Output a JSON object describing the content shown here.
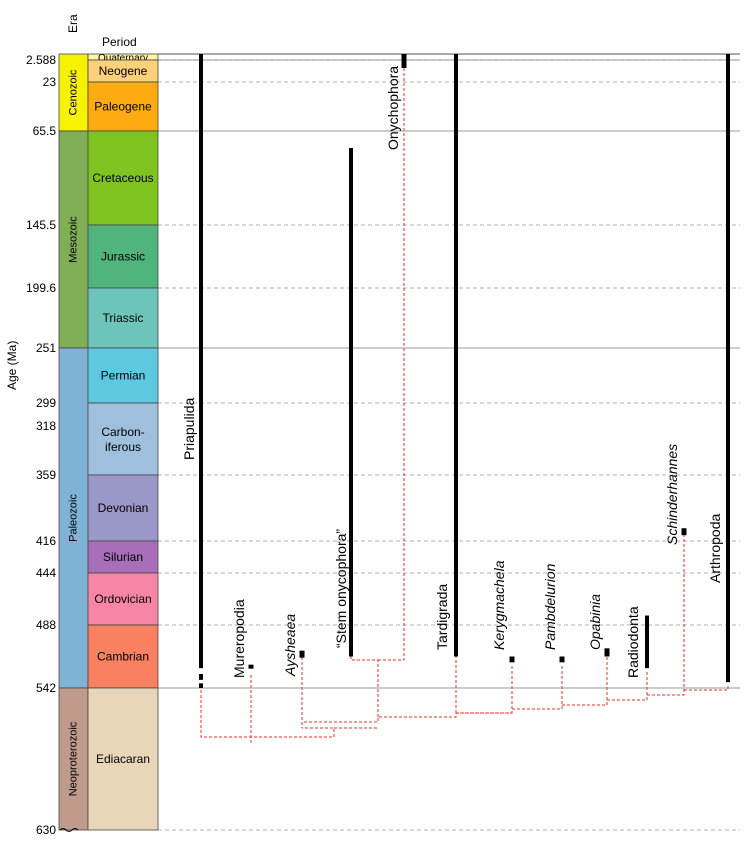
{
  "headers": {
    "era": "Era",
    "period": "Period",
    "age_axis": "Age (Ma)"
  },
  "age_ticks": [
    {
      "label": "2.588",
      "value": 2.588,
      "line": "solid"
    },
    {
      "label": "23",
      "value": 23,
      "line": "dashed"
    },
    {
      "label": "65.5",
      "value": 65.5,
      "line": "solid"
    },
    {
      "label": "145.5",
      "value": 145.5,
      "line": "dashed"
    },
    {
      "label": "199.6",
      "value": 199.6,
      "line": "dashed"
    },
    {
      "label": "251",
      "value": 251,
      "line": "solid"
    },
    {
      "label": "299",
      "value": 299,
      "line": "dashed"
    },
    {
      "label": "318",
      "value": 318,
      "line": "none"
    },
    {
      "label": "359",
      "value": 359,
      "line": "dashed"
    },
    {
      "label": "416",
      "value": 416,
      "line": "dashed"
    },
    {
      "label": "444",
      "value": 444,
      "line": "dashed"
    },
    {
      "label": "488",
      "value": 488,
      "line": "dashed"
    },
    {
      "label": "542",
      "value": 542,
      "line": "solid"
    },
    {
      "label": "630",
      "value": 630,
      "line": "dashed"
    }
  ],
  "eras": [
    {
      "name": "Cenozoic",
      "start": 0,
      "end": 65.5,
      "color": "#f7f200"
    },
    {
      "name": "Mesozoic",
      "start": 65.5,
      "end": 251,
      "color": "#7fae56"
    },
    {
      "name": "Paleozoic",
      "start": 251,
      "end": 542,
      "color": "#7fb3d6"
    },
    {
      "name": "Neoproterozoic",
      "start": 542,
      "end": 630,
      "color": "#c09b8c"
    }
  ],
  "periods": [
    {
      "name": "Quaternary",
      "start": 0,
      "end": 2.588,
      "color": "#fef5a5"
    },
    {
      "name": "Neogene",
      "start": 2.588,
      "end": 23,
      "color": "#fcd17a"
    },
    {
      "name": "Paleogene",
      "start": 23,
      "end": 65.5,
      "color": "#fcac10"
    },
    {
      "name": "Cretaceous",
      "start": 65.5,
      "end": 145.5,
      "color": "#7fc321"
    },
    {
      "name": "Jurassic",
      "start": 145.5,
      "end": 199.6,
      "color": "#4fb57c"
    },
    {
      "name": "Triassic",
      "start": 199.6,
      "end": 251,
      "color": "#6cc5b8"
    },
    {
      "name": "Permian",
      "start": 251,
      "end": 299,
      "color": "#5ec8e0"
    },
    {
      "name": "Carbon-iferous",
      "line1": "Carbon-",
      "line2": "iferous",
      "start": 299,
      "end": 359,
      "color": "#9fc0dd"
    },
    {
      "name": "Devonian",
      "start": 359,
      "end": 416,
      "color": "#9a98c8"
    },
    {
      "name": "Silurian",
      "start": 416,
      "end": 444,
      "color": "#a86fb8"
    },
    {
      "name": "Ordovician",
      "start": 444,
      "end": 488,
      "color": "#f785a5"
    },
    {
      "name": "Cambrian",
      "start": 488,
      "end": 542,
      "color": "#f98060"
    },
    {
      "name": "Ediacaran",
      "start": 542,
      "end": 630,
      "color": "#e9d6b8"
    }
  ],
  "taxa": [
    {
      "name": "Priapulida",
      "italic": false,
      "range_top": 0,
      "range_bottom": 542,
      "gaps": [
        [
          525,
          530
        ],
        [
          535,
          538
        ]
      ]
    },
    {
      "name": "Mureropodia",
      "italic": false,
      "range_top": 522,
      "range_bottom": 525,
      "gaps": []
    },
    {
      "name": "Aysheaea",
      "italic": true,
      "range_top": 510,
      "range_bottom": 516,
      "gaps": []
    },
    {
      "name": "“Stem onycophora”",
      "italic": false,
      "range_top": 80,
      "range_bottom": 515,
      "gaps": []
    },
    {
      "name": "Onychophora",
      "italic": false,
      "range_top": 0,
      "range_bottom": 10,
      "gaps": []
    },
    {
      "name": "Tardigrada",
      "italic": false,
      "range_top": 0,
      "range_bottom": 515,
      "gaps": []
    },
    {
      "name": "Kerygmachela",
      "italic": true,
      "range_top": 515,
      "range_bottom": 520,
      "gaps": []
    },
    {
      "name": "Pambdelurion",
      "italic": true,
      "range_top": 515,
      "range_bottom": 520,
      "gaps": []
    },
    {
      "name": "Opabinia",
      "italic": true,
      "range_top": 508,
      "range_bottom": 515,
      "gaps": []
    },
    {
      "name": "Radiodonta",
      "italic": false,
      "range_top": 480,
      "range_bottom": 525,
      "gaps": []
    },
    {
      "name": "Schinderhannes",
      "italic": true,
      "range_top": 405,
      "range_bottom": 411,
      "gaps": []
    },
    {
      "name": "Arthropoda",
      "italic": false,
      "range_top": 0,
      "range_bottom": 537,
      "gaps": []
    }
  ],
  "colors": {
    "tree": "#e8322a",
    "range": "#000000",
    "grid": "#999999"
  }
}
